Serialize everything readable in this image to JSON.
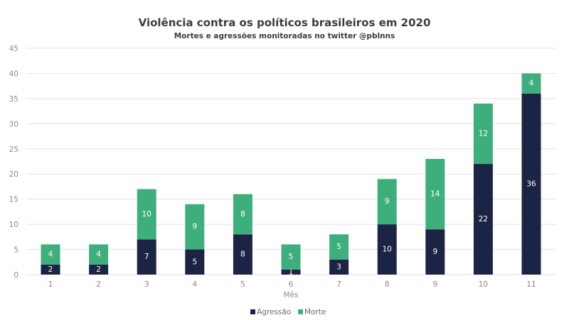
{
  "chart_data": {
    "type": "bar",
    "stacked": true,
    "title": "Violência contra os políticos brasileiros em 2020",
    "subtitle": "Mortes e agressões monitoradas no twitter @pblnns",
    "xlabel": "Mês",
    "ylabel": "",
    "ylim": [
      0,
      45
    ],
    "yticks": [
      0,
      5,
      10,
      15,
      20,
      25,
      30,
      35,
      40,
      45
    ],
    "grid": true,
    "legend_position": "bottom-center",
    "categories": [
      "1",
      "2",
      "3",
      "4",
      "5",
      "6",
      "7",
      "8",
      "9",
      "10",
      "11"
    ],
    "series": [
      {
        "name": "Agressão",
        "color": "#1b2444",
        "values": [
          2,
          2,
          7,
          5,
          8,
          1,
          3,
          10,
          9,
          22,
          36
        ]
      },
      {
        "name": "Morte",
        "color": "#3fae7d",
        "values": [
          4,
          4,
          10,
          9,
          8,
          5,
          5,
          9,
          14,
          12,
          4
        ]
      }
    ]
  }
}
